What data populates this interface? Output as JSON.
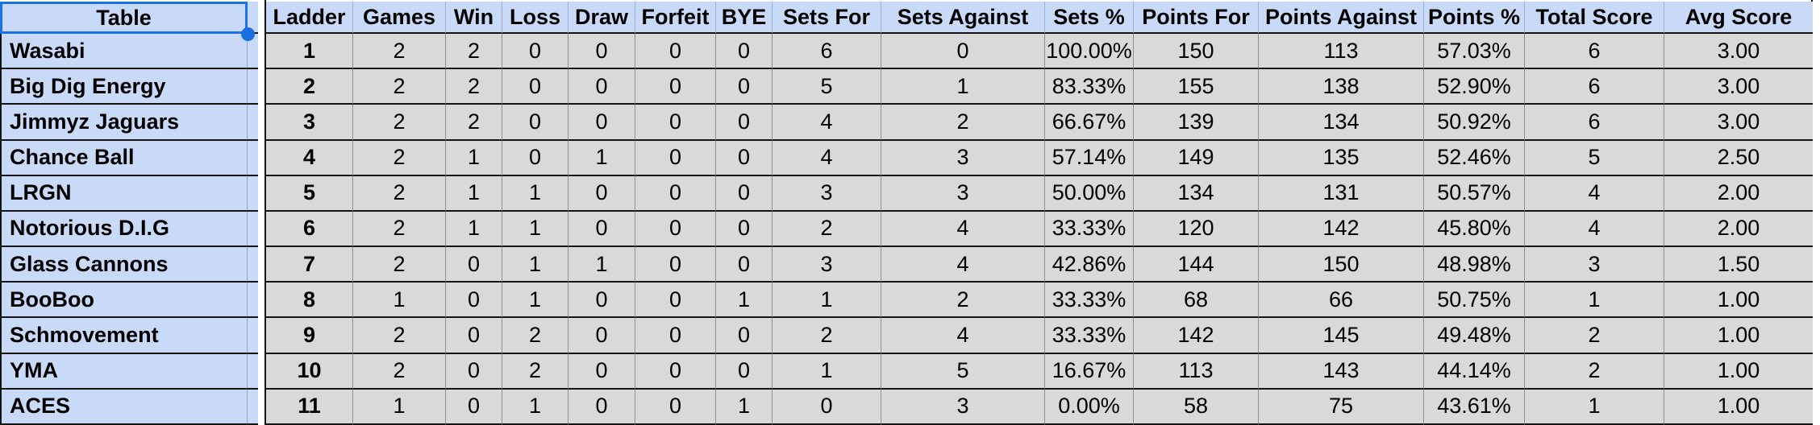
{
  "table": {
    "corner_header": "Table",
    "columns": [
      "Ladder",
      "Games",
      "Win",
      "Loss",
      "Draw",
      "Forfeit",
      "BYE",
      "Sets For",
      "Sets Against",
      "Sets %",
      "Points For",
      "Points Against",
      "Points %",
      "Total Score",
      "Avg Score"
    ],
    "rows": [
      {
        "team": "Wasabi",
        "values": [
          "1",
          "2",
          "2",
          "0",
          "0",
          "0",
          "0",
          "6",
          "0",
          "100.00%",
          "150",
          "113",
          "57.03%",
          "6",
          "3.00"
        ]
      },
      {
        "team": "Big Dig Energy",
        "values": [
          "2",
          "2",
          "2",
          "0",
          "0",
          "0",
          "0",
          "5",
          "1",
          "83.33%",
          "155",
          "138",
          "52.90%",
          "6",
          "3.00"
        ]
      },
      {
        "team": "Jimmyz Jaguars",
        "values": [
          "3",
          "2",
          "2",
          "0",
          "0",
          "0",
          "0",
          "4",
          "2",
          "66.67%",
          "139",
          "134",
          "50.92%",
          "6",
          "3.00"
        ]
      },
      {
        "team": "Chance Ball",
        "values": [
          "4",
          "2",
          "1",
          "0",
          "1",
          "0",
          "0",
          "4",
          "3",
          "57.14%",
          "149",
          "135",
          "52.46%",
          "5",
          "2.50"
        ]
      },
      {
        "team": "LRGN",
        "values": [
          "5",
          "2",
          "1",
          "1",
          "0",
          "0",
          "0",
          "3",
          "3",
          "50.00%",
          "134",
          "131",
          "50.57%",
          "4",
          "2.00"
        ]
      },
      {
        "team": "Notorious D.I.G",
        "values": [
          "6",
          "2",
          "1",
          "1",
          "0",
          "0",
          "0",
          "2",
          "4",
          "33.33%",
          "120",
          "142",
          "45.80%",
          "4",
          "2.00"
        ]
      },
      {
        "team": "Glass Cannons",
        "values": [
          "7",
          "2",
          "0",
          "1",
          "1",
          "0",
          "0",
          "3",
          "4",
          "42.86%",
          "144",
          "150",
          "48.98%",
          "3",
          "1.50"
        ]
      },
      {
        "team": "BooBoo",
        "values": [
          "8",
          "1",
          "0",
          "1",
          "0",
          "0",
          "1",
          "1",
          "2",
          "33.33%",
          "68",
          "66",
          "50.75%",
          "1",
          "1.00"
        ]
      },
      {
        "team": "Schmovement",
        "values": [
          "9",
          "2",
          "0",
          "2",
          "0",
          "0",
          "0",
          "2",
          "4",
          "33.33%",
          "142",
          "145",
          "49.48%",
          "2",
          "1.00"
        ]
      },
      {
        "team": "YMA",
        "values": [
          "10",
          "2",
          "0",
          "2",
          "0",
          "0",
          "0",
          "1",
          "5",
          "16.67%",
          "113",
          "143",
          "44.14%",
          "2",
          "1.00"
        ]
      },
      {
        "team": "ACES",
        "values": [
          "11",
          "1",
          "0",
          "1",
          "0",
          "0",
          "1",
          "0",
          "3",
          "0.00%",
          "58",
          "75",
          "43.61%",
          "1",
          "1.00"
        ]
      }
    ],
    "colors": {
      "header_background": "#c9daf8",
      "cell_background": "#d9d9d9",
      "selection_border": "#1a73e8",
      "row_border": "#141414",
      "column_border": "#8f8f8f"
    }
  }
}
